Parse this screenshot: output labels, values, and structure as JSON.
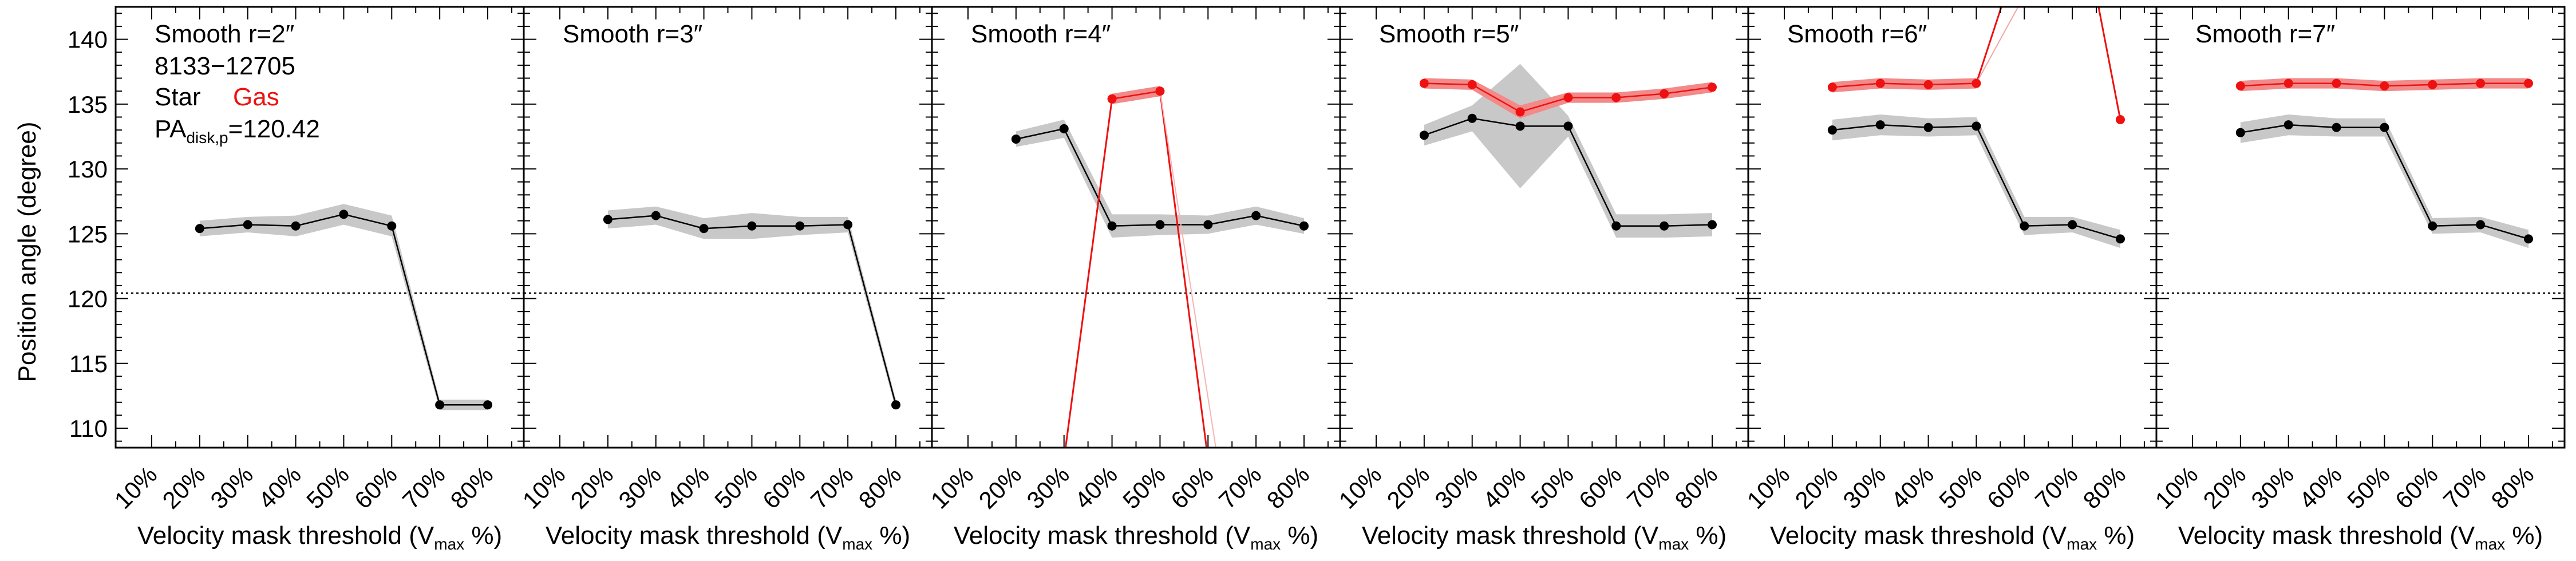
{
  "figure": {
    "ylabel": "Position angle (degree)",
    "legend_id": "8133−12705",
    "legend_star": "Star",
    "legend_gas": "Gas",
    "legend_pa_prefix": "PA",
    "legend_pa_sub": "disk,p",
    "legend_pa_value": "=120.42",
    "xlabel_prefix": "Velocity mask threshold (V",
    "xlabel_sub": "max",
    "xlabel_suffix": " %)"
  },
  "colors": {
    "star": "#000000",
    "star_band": "#c8c8c8",
    "gas": "#ee1111",
    "gas_band": "#f28a8a",
    "pa_line": "#000000"
  },
  "chart_data": [
    {
      "type": "line",
      "title": "Smooth r=2″",
      "categories": [
        "10%",
        "20%",
        "30%",
        "40%",
        "50%",
        "60%",
        "70%",
        "80%"
      ],
      "ylim": [
        108.5,
        142.5
      ],
      "yticks": [
        110,
        115,
        120,
        125,
        130,
        135,
        140
      ],
      "reference_line": 120.42,
      "series": [
        {
          "name": "Star",
          "x": [
            20,
            30,
            40,
            50,
            60,
            70,
            80
          ],
          "values": [
            125.4,
            125.7,
            125.6,
            126.5,
            125.6,
            111.8,
            111.8
          ],
          "band": [
            0.6,
            0.6,
            0.8,
            0.8,
            0.8,
            0.4,
            0.4
          ]
        }
      ]
    },
    {
      "type": "line",
      "title": "Smooth r=3″",
      "categories": [
        "10%",
        "20%",
        "30%",
        "40%",
        "50%",
        "60%",
        "70%",
        "80%"
      ],
      "ylim": [
        108.5,
        142.5
      ],
      "yticks": [
        110,
        115,
        120,
        125,
        130,
        135,
        140
      ],
      "reference_line": 120.42,
      "series": [
        {
          "name": "Star",
          "x": [
            20,
            30,
            40,
            50,
            60,
            70,
            80
          ],
          "values": [
            126.1,
            126.4,
            125.4,
            125.6,
            125.6,
            125.7,
            111.8
          ],
          "band": [
            0.7,
            0.7,
            0.8,
            1.0,
            0.7,
            0.6,
            0.4
          ]
        }
      ]
    },
    {
      "type": "line",
      "title": "Smooth r=4″",
      "categories": [
        "10%",
        "20%",
        "30%",
        "40%",
        "50%",
        "60%",
        "70%",
        "80%"
      ],
      "ylim": [
        108.5,
        142.5
      ],
      "yticks": [
        110,
        115,
        120,
        125,
        130,
        135,
        140
      ],
      "reference_line": 120.42,
      "series": [
        {
          "name": "Star",
          "x": [
            20,
            30,
            40,
            50,
            60,
            70,
            80
          ],
          "values": [
            132.3,
            133.1,
            125.6,
            125.7,
            125.7,
            126.4,
            125.6
          ],
          "band": [
            0.6,
            0.7,
            0.9,
            0.8,
            0.7,
            0.7,
            0.6
          ]
        },
        {
          "name": "Gas",
          "x": [
            40,
            50
          ],
          "values": [
            135.4,
            136.0
          ],
          "band": [
            0.4,
            0.4
          ]
        }
      ]
    },
    {
      "type": "line",
      "title": "Smooth r=5″",
      "categories": [
        "10%",
        "20%",
        "30%",
        "40%",
        "50%",
        "60%",
        "70%",
        "80%"
      ],
      "ylim": [
        108.5,
        142.5
      ],
      "yticks": [
        110,
        115,
        120,
        125,
        130,
        135,
        140
      ],
      "reference_line": 120.42,
      "series": [
        {
          "name": "Star",
          "x": [
            20,
            30,
            40,
            50,
            60,
            70,
            80
          ],
          "values": [
            132.6,
            133.9,
            133.3,
            133.3,
            125.6,
            125.6,
            125.7
          ],
          "band": [
            0.8,
            1.0,
            4.8,
            0.8,
            0.9,
            0.9,
            0.9
          ]
        },
        {
          "name": "Gas",
          "x": [
            20,
            30,
            40,
            50,
            60,
            70,
            80
          ],
          "values": [
            136.6,
            136.5,
            134.4,
            135.5,
            135.5,
            135.8,
            136.3
          ],
          "band": [
            0.4,
            0.4,
            0.5,
            0.4,
            0.4,
            0.4,
            0.4
          ]
        }
      ]
    },
    {
      "type": "line",
      "title": "Smooth r=6″",
      "categories": [
        "10%",
        "20%",
        "30%",
        "40%",
        "50%",
        "60%",
        "70%",
        "80%"
      ],
      "ylim": [
        108.5,
        142.5
      ],
      "yticks": [
        110,
        115,
        120,
        125,
        130,
        135,
        140
      ],
      "reference_line": 120.42,
      "series": [
        {
          "name": "Star",
          "x": [
            20,
            30,
            40,
            50,
            60,
            70,
            80
          ],
          "values": [
            133.0,
            133.4,
            133.2,
            133.3,
            125.6,
            125.7,
            124.6
          ],
          "band": [
            0.8,
            0.8,
            0.7,
            0.7,
            0.7,
            0.6,
            0.7
          ]
        },
        {
          "name": "Gas",
          "x": [
            20,
            30,
            40,
            50,
            80
          ],
          "values": [
            136.3,
            136.6,
            136.5,
            136.6,
            133.8
          ],
          "band": [
            0.4,
            0.4,
            0.4,
            0.4,
            0.0
          ]
        }
      ]
    },
    {
      "type": "line",
      "title": "Smooth r=7″",
      "categories": [
        "10%",
        "20%",
        "30%",
        "40%",
        "50%",
        "60%",
        "70%",
        "80%"
      ],
      "ylim": [
        108.5,
        142.5
      ],
      "yticks": [
        110,
        115,
        120,
        125,
        130,
        135,
        140
      ],
      "reference_line": 120.42,
      "series": [
        {
          "name": "Star",
          "x": [
            20,
            30,
            40,
            50,
            60,
            70,
            80
          ],
          "values": [
            132.8,
            133.4,
            133.2,
            133.2,
            125.6,
            125.7,
            124.6
          ],
          "band": [
            0.8,
            0.8,
            0.7,
            0.7,
            0.6,
            0.6,
            0.7
          ]
        },
        {
          "name": "Gas",
          "x": [
            20,
            30,
            40,
            50,
            60,
            70,
            80
          ],
          "values": [
            136.4,
            136.6,
            136.6,
            136.4,
            136.5,
            136.6,
            136.6
          ],
          "band": [
            0.4,
            0.4,
            0.4,
            0.4,
            0.4,
            0.4,
            0.4
          ]
        }
      ]
    }
  ]
}
